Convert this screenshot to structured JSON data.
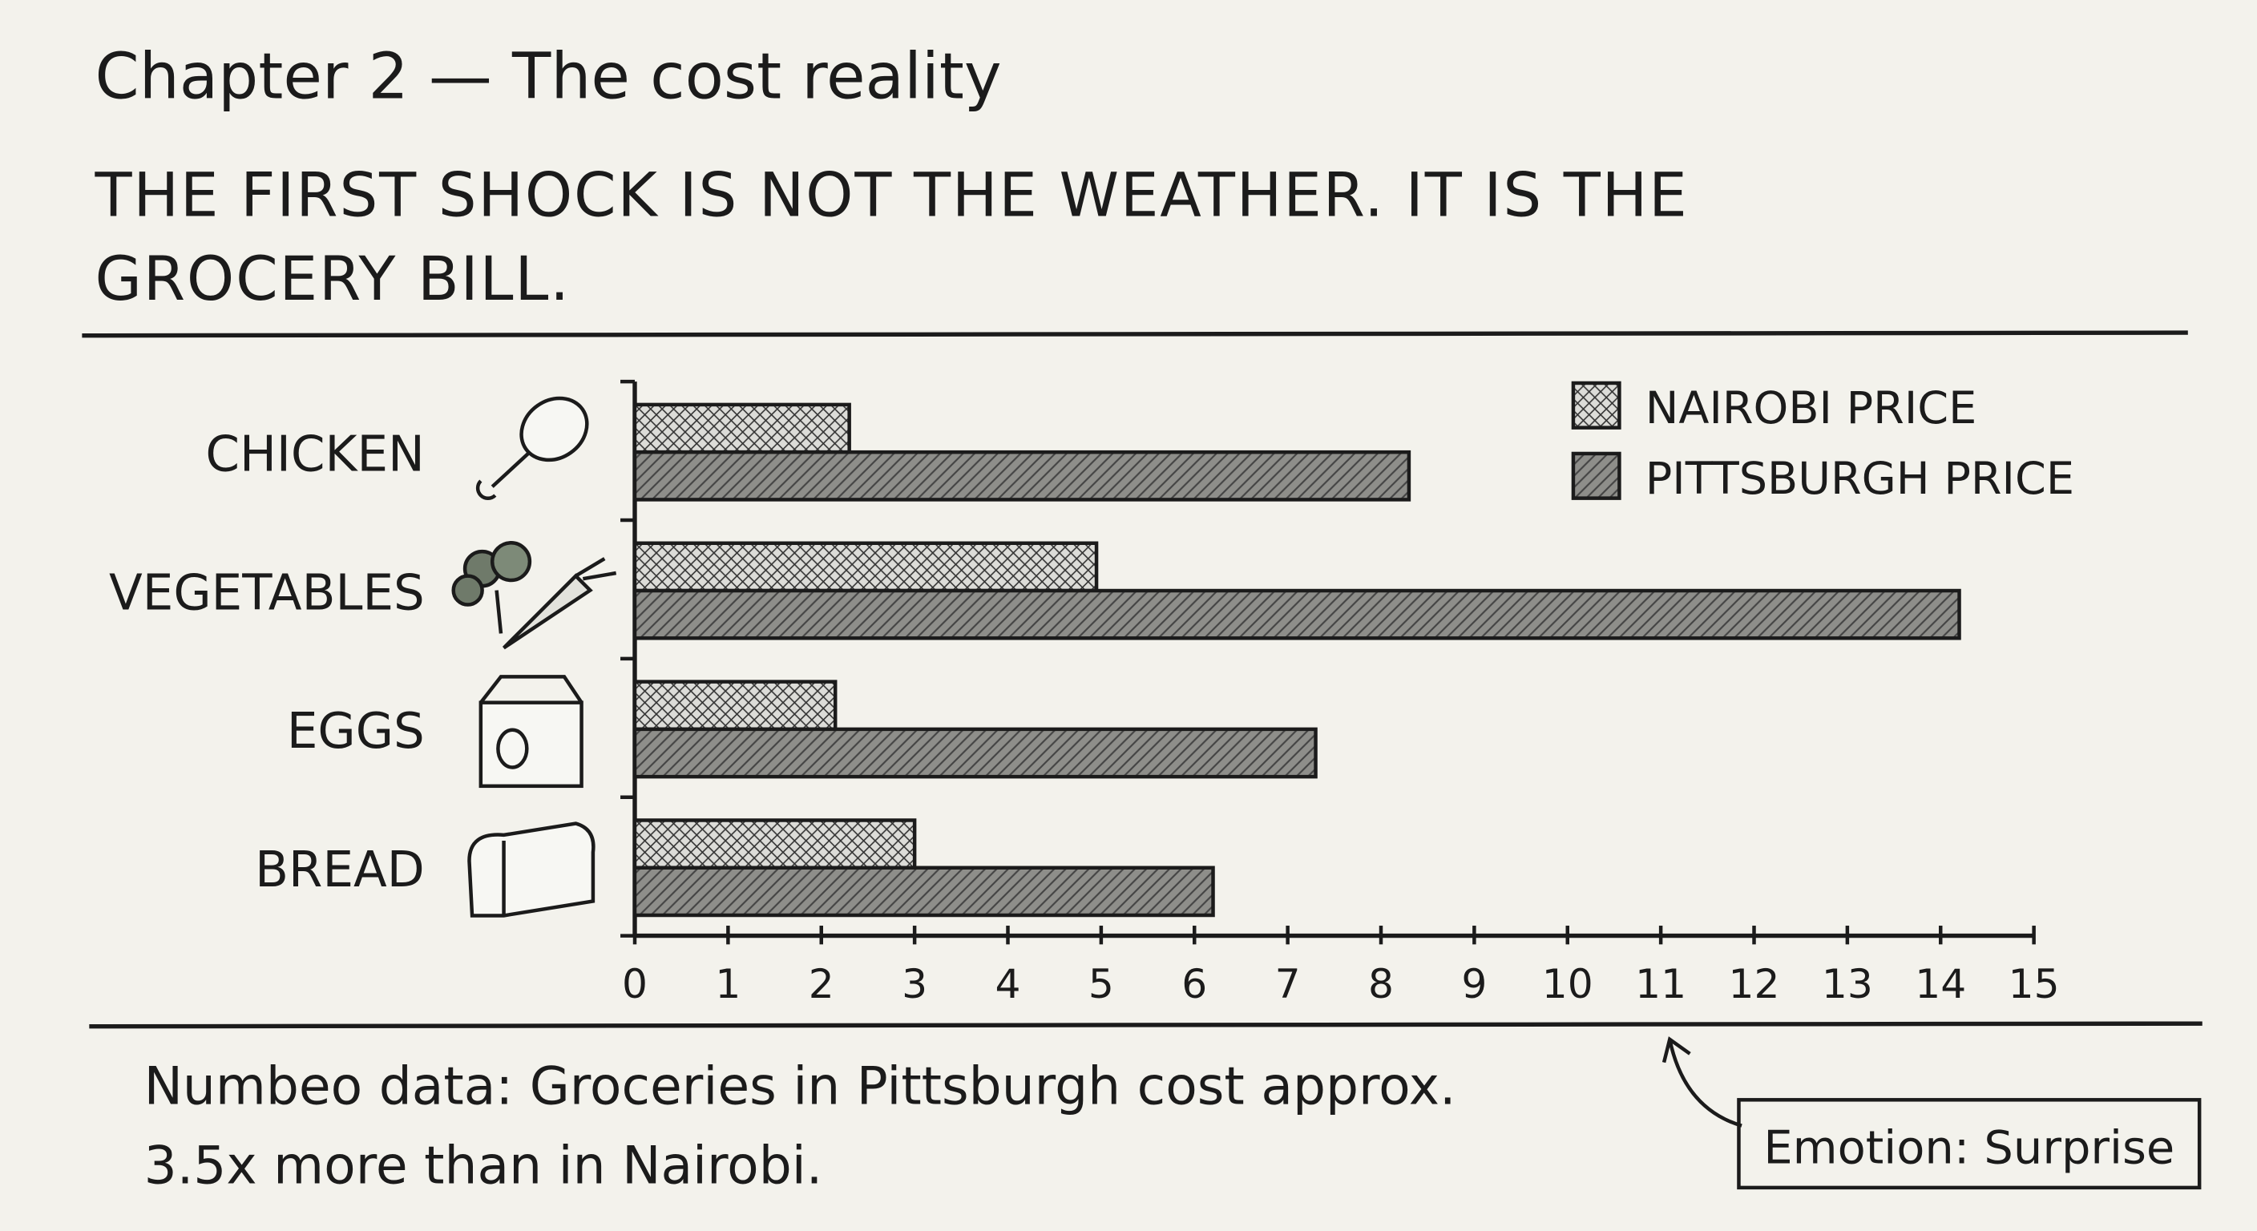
{
  "header": {
    "chapter": "Chapter 2 — The cost reality",
    "headline": [
      "THE FIRST SHOCK IS NOT THE WEATHER. IT IS THE",
      "GROCERY BILL."
    ]
  },
  "chart_data": {
    "type": "bar",
    "orientation": "horizontal",
    "categories": [
      "CHICKEN",
      "VEGETABLES",
      "EGGS",
      "BREAD"
    ],
    "series": [
      {
        "name": "NAIROBI PRICE",
        "color": "#dcdcd8",
        "pattern": "crosshatch",
        "values": [
          2.3,
          4.95,
          2.15,
          3.0
        ]
      },
      {
        "name": "PITTSBURGH PRICE",
        "color": "#8e8e8a",
        "pattern": "diagonal",
        "values": [
          8.3,
          14.2,
          7.3,
          6.2
        ]
      }
    ],
    "xlim": [
      0,
      15
    ],
    "xticks": [
      0,
      1,
      2,
      3,
      4,
      5,
      6,
      7,
      8,
      9,
      10,
      11,
      12,
      13,
      14,
      15
    ],
    "legend": "top-right"
  },
  "footer": {
    "note": [
      "Numbeo data: Groceries in Pittsburgh cost approx.",
      "3.5x more than in Nairobi."
    ],
    "emotion": "Emotion: Surprise"
  }
}
